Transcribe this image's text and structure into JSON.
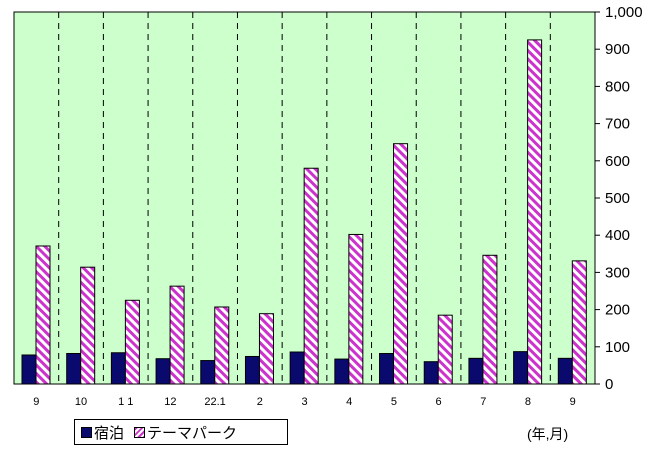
{
  "chart_data": {
    "type": "bar",
    "categories": [
      "9",
      "10",
      "1 1",
      "12",
      "22.1",
      "2",
      "3",
      "4",
      "5",
      "6",
      "7",
      "8",
      "9"
    ],
    "series": [
      {
        "name": "宿泊",
        "values": [
          78,
          82,
          84,
          68,
          63,
          74,
          86,
          67,
          82,
          60,
          69,
          87,
          69
        ],
        "color": "#0a0a6e"
      },
      {
        "name": "テーマパーク",
        "values": [
          371,
          314,
          225,
          263,
          207,
          189,
          580,
          402,
          646,
          185,
          346,
          925,
          331
        ],
        "color": "#cc33cc"
      }
    ],
    "ylim": [
      0,
      1000
    ],
    "yticks": [
      "0",
      "100",
      "200",
      "300",
      "400",
      "500",
      "600",
      "700",
      "800",
      "900",
      "1,000"
    ],
    "y_axis_side": "right",
    "xlabel": "(年,月)",
    "grid": "vertical-dashed",
    "legend_position": "bottom-left",
    "plot_background": "#ccffcc"
  }
}
